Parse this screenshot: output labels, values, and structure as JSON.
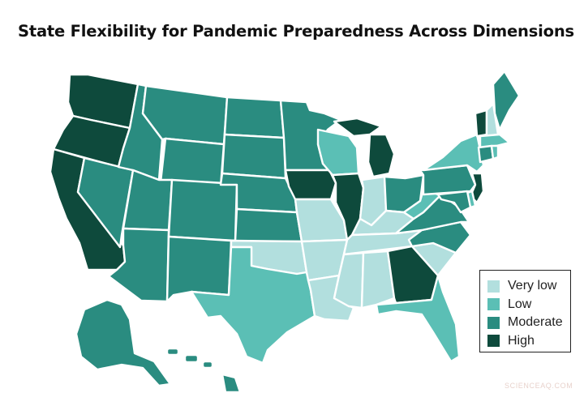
{
  "title": "State Flexibility for Pandemic Preparedness Across Dimensions",
  "colors": {
    "very_low": "#b2dfde",
    "low": "#5bbfb5",
    "moderate": "#2a8c80",
    "high": "#0e4a3c"
  },
  "legend": {
    "position": "bottom-right",
    "items": [
      {
        "key": "very_low",
        "label": "Very low"
      },
      {
        "key": "low",
        "label": "Low"
      },
      {
        "key": "moderate",
        "label": "Moderate"
      },
      {
        "key": "high",
        "label": "High"
      }
    ]
  },
  "states": {
    "WA": "high",
    "OR": "high",
    "CA": "high",
    "NV": "moderate",
    "ID": "moderate",
    "MT": "moderate",
    "WY": "moderate",
    "UT": "moderate",
    "AZ": "moderate",
    "CO": "moderate",
    "NM": "moderate",
    "ND": "moderate",
    "SD": "moderate",
    "NE": "moderate",
    "KS": "moderate",
    "OK": "very_low",
    "TX": "low",
    "MN": "moderate",
    "IA": "high",
    "MO": "very_low",
    "AR": "very_low",
    "LA": "very_low",
    "WI": "low",
    "IL": "high",
    "MI": "high",
    "IN": "very_low",
    "OH": "moderate",
    "KY": "very_low",
    "TN": "very_low",
    "MS": "very_low",
    "AL": "very_low",
    "GA": "high",
    "FL": "low",
    "SC": "very_low",
    "NC": "moderate",
    "VA": "moderate",
    "WV": "low",
    "PA": "moderate",
    "NY": "low",
    "VT": "high",
    "NH": "very_low",
    "ME": "moderate",
    "MA": "low",
    "CT": "moderate",
    "RI": "low",
    "NJ": "high",
    "DE": "low",
    "MD": "moderate",
    "AK": "moderate",
    "HI": "moderate"
  },
  "watermark": "SCIENCEAQ.COM"
}
